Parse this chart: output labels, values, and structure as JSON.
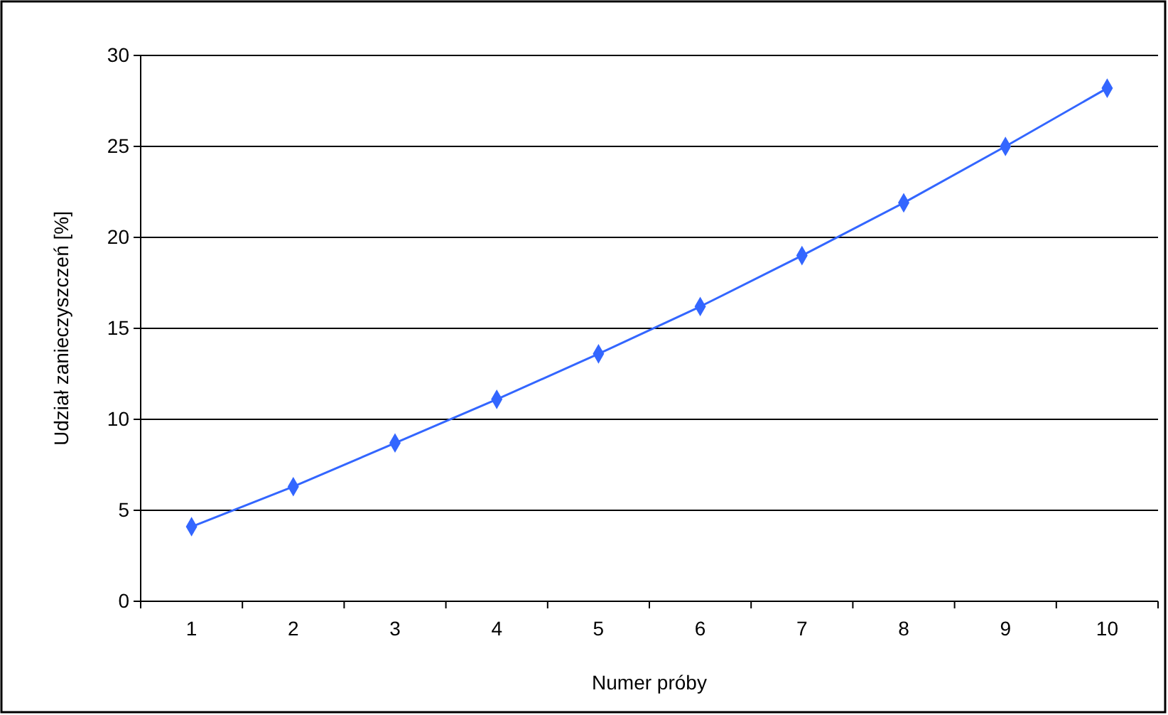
{
  "chart_data": {
    "type": "line",
    "xlabel": "Numer próby",
    "ylabel": "Udział zanieczyszczeń [%]",
    "categories": [
      "1",
      "2",
      "3",
      "4",
      "5",
      "6",
      "7",
      "8",
      "9",
      "10"
    ],
    "series": [
      {
        "color": "#3366ff",
        "values": [
          4.1,
          6.3,
          8.7,
          11.1,
          13.6,
          16.2,
          19.0,
          21.9,
          25.0,
          28.2
        ]
      }
    ],
    "ylim": [
      0,
      30
    ],
    "yticks": [
      0,
      5,
      10,
      15,
      20,
      25,
      30
    ],
    "grid": "y",
    "marker": "diamond",
    "line_style": "solid"
  }
}
